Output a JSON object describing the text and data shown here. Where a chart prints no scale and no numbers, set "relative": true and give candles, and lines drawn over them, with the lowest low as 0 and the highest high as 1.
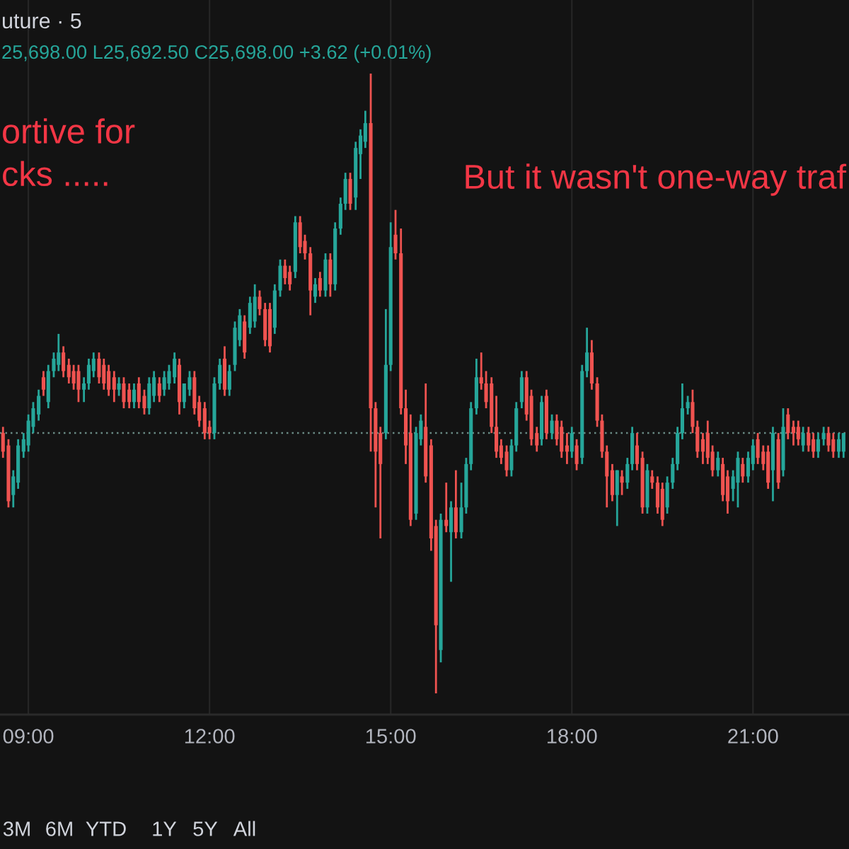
{
  "chart_data": {
    "type": "candlestick",
    "title": "uture · 5",
    "annotations": [
      "25,698.00 L25,692.50 C25,698.00 +3.62 (+0.01%)",
      "ortive for\ncks .....",
      "But it wasn't one-way traf",
      "3M",
      "6M",
      "YTD",
      "1Y",
      "5Y",
      "All"
    ],
    "relative": true,
    "tick_labels": "x",
    "grid": "x",
    "xlim": [
      8.53,
      22.59
    ],
    "xticks": [
      {
        "value": 9,
        "label": "09:00"
      },
      {
        "value": 12,
        "label": "12:00"
      },
      {
        "value": 15,
        "label": "15:00"
      },
      {
        "value": 18,
        "label": "18:00"
      },
      {
        "value": 21,
        "label": "21:00"
      }
    ],
    "ref_lines": [
      {
        "axis": "y",
        "value": 0.42,
        "line_style": "dotted",
        "color": "#6a8a84"
      }
    ],
    "x": [
      8.58,
      8.67,
      8.75,
      8.83,
      8.92,
      9,
      9.08,
      9.17,
      9.25,
      9.33,
      9.42,
      9.5,
      9.58,
      9.67,
      9.75,
      9.83,
      9.92,
      10,
      10.08,
      10.17,
      10.25,
      10.33,
      10.42,
      10.5,
      10.58,
      10.67,
      10.75,
      10.83,
      10.92,
      11,
      11.08,
      11.17,
      11.25,
      11.33,
      11.42,
      11.5,
      11.58,
      11.67,
      11.75,
      11.83,
      11.92,
      12,
      12.08,
      12.17,
      12.25,
      12.33,
      12.42,
      12.5,
      12.58,
      12.67,
      12.75,
      12.83,
      12.92,
      13,
      13.08,
      13.17,
      13.25,
      13.33,
      13.42,
      13.5,
      13.58,
      13.67,
      13.75,
      13.83,
      13.92,
      14,
      14.08,
      14.17,
      14.25,
      14.33,
      14.42,
      14.5,
      14.58,
      14.67,
      14.75,
      14.83,
      14.92,
      15,
      15.08,
      15.17,
      15.25,
      15.33,
      15.42,
      15.5,
      15.58,
      15.67,
      15.75,
      15.83,
      15.92,
      16,
      16.08,
      16.17,
      16.25,
      16.33,
      16.42,
      16.5,
      16.58,
      16.67,
      16.75,
      16.83,
      16.92,
      17,
      17.08,
      17.17,
      17.25,
      17.33,
      17.42,
      17.5,
      17.58,
      17.67,
      17.75,
      17.83,
      17.92,
      18,
      18.08,
      18.17,
      18.25,
      18.33,
      18.42,
      18.5,
      18.58,
      18.67,
      18.75,
      18.83,
      18.92,
      19,
      19.08,
      19.17,
      19.25,
      19.33,
      19.42,
      19.5,
      19.58,
      19.67,
      19.75,
      19.83,
      19.92,
      20,
      20.08,
      20.17,
      20.25,
      20.33,
      20.42,
      20.5,
      20.58,
      20.67,
      20.75,
      20.83,
      20.92,
      21,
      21.08,
      21.17,
      21.25,
      21.33,
      21.42,
      21.5,
      21.58,
      21.67,
      21.75,
      21.83,
      21.92,
      22,
      22.08,
      22.17,
      22.25,
      22.33,
      22.42,
      22.5
    ],
    "ohlc": [
      [
        0.42,
        0.43,
        0.38,
        0.39
      ],
      [
        0.4,
        0.41,
        0.3,
        0.31
      ],
      [
        0.32,
        0.36,
        0.3,
        0.35
      ],
      [
        0.34,
        0.41,
        0.33,
        0.4
      ],
      [
        0.39,
        0.42,
        0.38,
        0.41
      ],
      [
        0.4,
        0.45,
        0.39,
        0.44
      ],
      [
        0.43,
        0.47,
        0.42,
        0.46
      ],
      [
        0.45,
        0.49,
        0.44,
        0.48
      ],
      [
        0.51,
        0.52,
        0.48,
        0.49
      ],
      [
        0.47,
        0.53,
        0.46,
        0.52
      ],
      [
        0.52,
        0.55,
        0.51,
        0.54
      ],
      [
        0.53,
        0.58,
        0.52,
        0.55
      ],
      [
        0.55,
        0.56,
        0.51,
        0.52
      ],
      [
        0.53,
        0.54,
        0.5,
        0.51
      ],
      [
        0.52,
        0.53,
        0.49,
        0.5
      ],
      [
        0.52,
        0.53,
        0.47,
        0.49
      ],
      [
        0.49,
        0.51,
        0.47,
        0.5
      ],
      [
        0.5,
        0.54,
        0.49,
        0.53
      ],
      [
        0.52,
        0.55,
        0.51,
        0.54
      ],
      [
        0.54,
        0.55,
        0.5,
        0.51
      ],
      [
        0.53,
        0.54,
        0.49,
        0.5
      ],
      [
        0.52,
        0.53,
        0.48,
        0.49
      ],
      [
        0.51,
        0.52,
        0.47,
        0.49
      ],
      [
        0.49,
        0.51,
        0.48,
        0.5
      ],
      [
        0.5,
        0.51,
        0.46,
        0.47
      ],
      [
        0.49,
        0.5,
        0.46,
        0.47
      ],
      [
        0.47,
        0.5,
        0.46,
        0.49
      ],
      [
        0.5,
        0.51,
        0.46,
        0.47
      ],
      [
        0.48,
        0.49,
        0.45,
        0.46
      ],
      [
        0.46,
        0.51,
        0.45,
        0.5
      ],
      [
        0.48,
        0.52,
        0.47,
        0.51
      ],
      [
        0.5,
        0.51,
        0.47,
        0.48
      ],
      [
        0.49,
        0.52,
        0.48,
        0.51
      ],
      [
        0.5,
        0.53,
        0.49,
        0.52
      ],
      [
        0.51,
        0.55,
        0.5,
        0.54
      ],
      [
        0.53,
        0.54,
        0.45,
        0.47
      ],
      [
        0.47,
        0.5,
        0.46,
        0.5
      ],
      [
        0.49,
        0.52,
        0.48,
        0.51
      ],
      [
        0.51,
        0.52,
        0.45,
        0.46
      ],
      [
        0.47,
        0.48,
        0.43,
        0.44
      ],
      [
        0.46,
        0.47,
        0.41,
        0.42
      ],
      [
        0.43,
        0.44,
        0.41,
        0.42
      ],
      [
        0.42,
        0.51,
        0.41,
        0.5
      ],
      [
        0.5,
        0.54,
        0.49,
        0.53
      ],
      [
        0.54,
        0.56,
        0.48,
        0.49
      ],
      [
        0.49,
        0.53,
        0.48,
        0.52
      ],
      [
        0.53,
        0.6,
        0.52,
        0.59
      ],
      [
        0.57,
        0.62,
        0.56,
        0.61
      ],
      [
        0.6,
        0.61,
        0.54,
        0.55
      ],
      [
        0.59,
        0.64,
        0.58,
        0.63
      ],
      [
        0.6,
        0.66,
        0.59,
        0.64
      ],
      [
        0.64,
        0.65,
        0.61,
        0.62
      ],
      [
        0.62,
        0.63,
        0.56,
        0.57
      ],
      [
        0.62,
        0.63,
        0.55,
        0.56
      ],
      [
        0.59,
        0.66,
        0.58,
        0.65
      ],
      [
        0.65,
        0.7,
        0.64,
        0.69
      ],
      [
        0.69,
        0.7,
        0.66,
        0.67
      ],
      [
        0.68,
        0.69,
        0.65,
        0.66
      ],
      [
        0.68,
        0.77,
        0.67,
        0.76
      ],
      [
        0.76,
        0.77,
        0.71,
        0.72
      ],
      [
        0.73,
        0.74,
        0.7,
        0.71
      ],
      [
        0.71,
        0.72,
        0.61,
        0.65
      ],
      [
        0.64,
        0.67,
        0.63,
        0.66
      ],
      [
        0.67,
        0.68,
        0.64,
        0.65
      ],
      [
        0.65,
        0.71,
        0.64,
        0.7
      ],
      [
        0.7,
        0.71,
        0.64,
        0.66
      ],
      [
        0.66,
        0.76,
        0.65,
        0.75
      ],
      [
        0.75,
        0.8,
        0.74,
        0.79
      ],
      [
        0.79,
        0.84,
        0.78,
        0.83
      ],
      [
        0.83,
        0.84,
        0.78,
        0.79
      ],
      [
        0.8,
        0.89,
        0.78,
        0.88
      ],
      [
        0.87,
        0.91,
        0.83,
        0.9
      ],
      [
        0.89,
        0.94,
        0.88,
        0.92
      ],
      [
        0.92,
        1.0,
        0.39,
        0.46
      ],
      [
        0.46,
        0.47,
        0.3,
        0.39
      ],
      [
        0.42,
        0.43,
        0.25,
        0.37
      ],
      [
        0.42,
        0.62,
        0.41,
        0.53
      ],
      [
        0.53,
        0.76,
        0.52,
        0.72
      ],
      [
        0.74,
        0.78,
        0.7,
        0.71
      ],
      [
        0.71,
        0.75,
        0.45,
        0.46
      ],
      [
        0.46,
        0.49,
        0.37,
        0.4
      ],
      [
        0.42,
        0.45,
        0.27,
        0.28
      ],
      [
        0.29,
        0.43,
        0.28,
        0.42
      ],
      [
        0.41,
        0.45,
        0.4,
        0.44
      ],
      [
        0.43,
        0.5,
        0.34,
        0.35
      ],
      [
        0.4,
        0.41,
        0.23,
        0.25
      ],
      [
        0.27,
        0.28,
        0.0,
        0.11
      ],
      [
        0.07,
        0.29,
        0.05,
        0.28
      ],
      [
        0.28,
        0.34,
        0.26,
        0.27
      ],
      [
        0.26,
        0.31,
        0.18,
        0.3
      ],
      [
        0.3,
        0.36,
        0.25,
        0.26
      ],
      [
        0.26,
        0.34,
        0.25,
        0.3
      ],
      [
        0.3,
        0.38,
        0.29,
        0.37
      ],
      [
        0.37,
        0.47,
        0.36,
        0.46
      ],
      [
        0.46,
        0.54,
        0.45,
        0.51
      ],
      [
        0.51,
        0.55,
        0.49,
        0.5
      ],
      [
        0.5,
        0.52,
        0.46,
        0.47
      ],
      [
        0.5,
        0.51,
        0.42,
        0.43
      ],
      [
        0.43,
        0.48,
        0.38,
        0.39
      ],
      [
        0.4,
        0.41,
        0.37,
        0.38
      ],
      [
        0.39,
        0.4,
        0.35,
        0.36
      ],
      [
        0.36,
        0.41,
        0.35,
        0.4
      ],
      [
        0.4,
        0.47,
        0.39,
        0.46
      ],
      [
        0.47,
        0.52,
        0.46,
        0.51
      ],
      [
        0.51,
        0.52,
        0.44,
        0.45
      ],
      [
        0.48,
        0.49,
        0.4,
        0.41
      ],
      [
        0.42,
        0.43,
        0.39,
        0.4
      ],
      [
        0.41,
        0.48,
        0.4,
        0.47
      ],
      [
        0.48,
        0.49,
        0.41,
        0.42
      ],
      [
        0.42,
        0.45,
        0.41,
        0.44
      ],
      [
        0.44,
        0.45,
        0.4,
        0.41
      ],
      [
        0.43,
        0.44,
        0.38,
        0.39
      ],
      [
        0.4,
        0.42,
        0.37,
        0.39
      ],
      [
        0.39,
        0.43,
        0.38,
        0.42
      ],
      [
        0.4,
        0.41,
        0.36,
        0.37
      ],
      [
        0.38,
        0.53,
        0.37,
        0.52
      ],
      [
        0.52,
        0.59,
        0.51,
        0.55
      ],
      [
        0.55,
        0.57,
        0.49,
        0.5
      ],
      [
        0.5,
        0.51,
        0.43,
        0.44
      ],
      [
        0.44,
        0.45,
        0.38,
        0.39
      ],
      [
        0.39,
        0.4,
        0.3,
        0.35
      ],
      [
        0.36,
        0.37,
        0.31,
        0.32
      ],
      [
        0.32,
        0.36,
        0.27,
        0.36
      ],
      [
        0.35,
        0.36,
        0.32,
        0.34
      ],
      [
        0.34,
        0.38,
        0.33,
        0.37
      ],
      [
        0.37,
        0.43,
        0.36,
        0.42
      ],
      [
        0.4,
        0.42,
        0.36,
        0.37
      ],
      [
        0.38,
        0.39,
        0.29,
        0.3
      ],
      [
        0.3,
        0.37,
        0.29,
        0.36
      ],
      [
        0.35,
        0.36,
        0.33,
        0.34
      ],
      [
        0.34,
        0.35,
        0.29,
        0.3
      ],
      [
        0.33,
        0.34,
        0.27,
        0.28
      ],
      [
        0.3,
        0.35,
        0.29,
        0.34
      ],
      [
        0.34,
        0.38,
        0.33,
        0.37
      ],
      [
        0.37,
        0.43,
        0.36,
        0.42
      ],
      [
        0.42,
        0.5,
        0.41,
        0.46
      ],
      [
        0.46,
        0.48,
        0.45,
        0.47
      ],
      [
        0.47,
        0.49,
        0.42,
        0.43
      ],
      [
        0.43,
        0.44,
        0.38,
        0.39
      ],
      [
        0.41,
        0.42,
        0.37,
        0.39
      ],
      [
        0.42,
        0.44,
        0.37,
        0.38
      ],
      [
        0.39,
        0.4,
        0.35,
        0.36
      ],
      [
        0.36,
        0.39,
        0.35,
        0.38
      ],
      [
        0.37,
        0.38,
        0.31,
        0.32
      ],
      [
        0.35,
        0.36,
        0.29,
        0.31
      ],
      [
        0.33,
        0.36,
        0.31,
        0.35
      ],
      [
        0.34,
        0.39,
        0.3,
        0.38
      ],
      [
        0.37,
        0.38,
        0.34,
        0.35
      ],
      [
        0.35,
        0.39,
        0.34,
        0.38
      ],
      [
        0.37,
        0.41,
        0.36,
        0.4
      ],
      [
        0.41,
        0.42,
        0.37,
        0.38
      ],
      [
        0.39,
        0.4,
        0.36,
        0.37
      ],
      [
        0.39,
        0.4,
        0.33,
        0.34
      ],
      [
        0.36,
        0.43,
        0.31,
        0.42
      ],
      [
        0.41,
        0.42,
        0.33,
        0.34
      ],
      [
        0.36,
        0.46,
        0.35,
        0.43
      ],
      [
        0.45,
        0.46,
        0.41,
        0.42
      ],
      [
        0.43,
        0.44,
        0.4,
        0.42
      ],
      [
        0.43,
        0.44,
        0.4,
        0.41
      ],
      [
        0.4,
        0.43,
        0.39,
        0.42
      ],
      [
        0.42,
        0.43,
        0.39,
        0.4
      ],
      [
        0.41,
        0.42,
        0.38,
        0.39
      ],
      [
        0.39,
        0.42,
        0.38,
        0.41
      ],
      [
        0.41,
        0.43,
        0.4,
        0.42
      ],
      [
        0.42,
        0.43,
        0.39,
        0.4
      ],
      [
        0.41,
        0.42,
        0.38,
        0.39
      ],
      [
        0.39,
        0.42,
        0.38,
        0.41
      ],
      [
        0.39,
        0.42,
        0.38,
        0.42
      ]
    ],
    "colors": [
      "#ef5350",
      "#ef5350",
      "#26a69a",
      "#26a69a",
      "#26a69a",
      "#26a69a",
      "#26a69a",
      "#26a69a",
      "#ef5350",
      "#26a69a",
      "#26a69a",
      "#26a69a",
      "#ef5350",
      "#ef5350",
      "#ef5350",
      "#ef5350",
      "#26a69a",
      "#26a69a",
      "#26a69a",
      "#ef5350",
      "#ef5350",
      "#ef5350",
      "#ef5350",
      "#26a69a",
      "#ef5350",
      "#ef5350",
      "#26a69a",
      "#ef5350",
      "#ef5350",
      "#26a69a",
      "#26a69a",
      "#ef5350",
      "#26a69a",
      "#26a69a",
      "#26a69a",
      "#ef5350",
      "#26a69a",
      "#26a69a",
      "#ef5350",
      "#ef5350",
      "#ef5350",
      "#ef5350",
      "#26a69a",
      "#26a69a",
      "#ef5350",
      "#26a69a",
      "#26a69a",
      "#26a69a",
      "#ef5350",
      "#26a69a",
      "#26a69a",
      "#ef5350",
      "#ef5350",
      "#ef5350",
      "#26a69a",
      "#26a69a",
      "#ef5350",
      "#ef5350",
      "#26a69a",
      "#ef5350",
      "#ef5350",
      "#ef5350",
      "#26a69a",
      "#ef5350",
      "#26a69a",
      "#ef5350",
      "#26a69a",
      "#26a69a",
      "#26a69a",
      "#ef5350",
      "#26a69a",
      "#26a69a",
      "#26a69a",
      "#ef5350",
      "#ef5350",
      "#ef5350",
      "#26a69a",
      "#26a69a",
      "#ef5350",
      "#ef5350",
      "#ef5350",
      "#ef5350",
      "#26a69a",
      "#26a69a",
      "#ef5350",
      "#ef5350",
      "#ef5350",
      "#26a69a",
      "#ef5350",
      "#26a69a",
      "#ef5350",
      "#26a69a",
      "#26a69a",
      "#26a69a",
      "#26a69a",
      "#ef5350",
      "#ef5350",
      "#ef5350",
      "#ef5350",
      "#ef5350",
      "#ef5350",
      "#26a69a",
      "#26a69a",
      "#26a69a",
      "#ef5350",
      "#ef5350",
      "#ef5350",
      "#26a69a",
      "#ef5350",
      "#26a69a",
      "#ef5350",
      "#ef5350",
      "#ef5350",
      "#26a69a",
      "#ef5350",
      "#26a69a",
      "#26a69a",
      "#ef5350",
      "#ef5350",
      "#ef5350",
      "#ef5350",
      "#ef5350",
      "#26a69a",
      "#ef5350",
      "#26a69a",
      "#26a69a",
      "#ef5350",
      "#ef5350",
      "#26a69a",
      "#ef5350",
      "#ef5350",
      "#ef5350",
      "#26a69a",
      "#26a69a",
      "#26a69a",
      "#26a69a",
      "#26a69a",
      "#ef5350",
      "#ef5350",
      "#ef5350",
      "#ef5350",
      "#ef5350",
      "#26a69a",
      "#ef5350",
      "#ef5350",
      "#26a69a",
      "#26a69a",
      "#ef5350",
      "#26a69a",
      "#26a69a",
      "#ef5350",
      "#ef5350",
      "#ef5350",
      "#26a69a",
      "#ef5350",
      "#26a69a",
      "#ef5350",
      "#ef5350",
      "#ef5350",
      "#26a69a",
      "#ef5350",
      "#ef5350",
      "#26a69a",
      "#26a69a",
      "#ef5350",
      "#ef5350",
      "#26a69a",
      "#26a69a"
    ]
  }
}
